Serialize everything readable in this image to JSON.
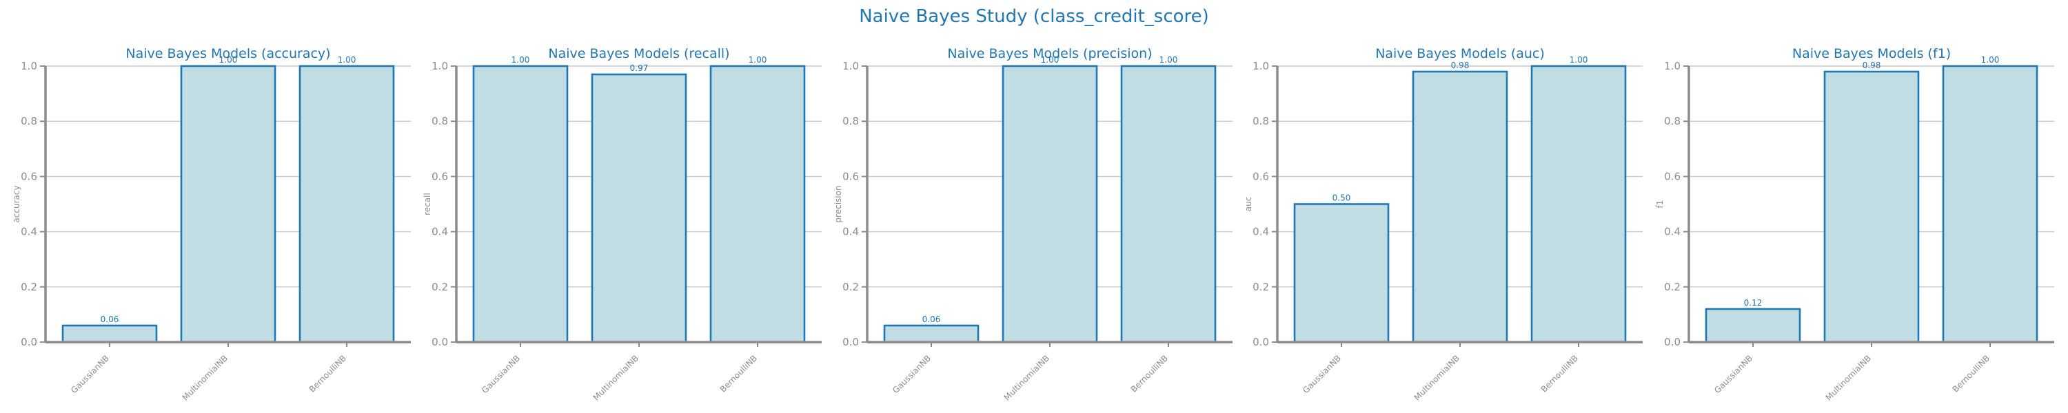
{
  "suptitle": "Naive Bayes Study (class_credit_score)",
  "colors": {
    "title": "#1f77b4",
    "bar_fill": "#bfdde2",
    "bar_edge": "#1f77b4",
    "axis": "#8c8c8c",
    "grid": "#c8c8c8"
  },
  "chart_data": [
    {
      "type": "bar",
      "title": "Naive Bayes Models (accuracy)",
      "xlabel": "",
      "ylabel": "accuracy",
      "categories": [
        "GaussianNB",
        "MultinomialNB",
        "BernoulliNB"
      ],
      "values": [
        0.06,
        1.0,
        1.0
      ],
      "value_labels": [
        "0.06",
        "1.00",
        "1.00"
      ],
      "ylim": [
        0,
        1.0
      ],
      "yticks": [
        "0.0",
        "0.2",
        "0.4",
        "0.6",
        "0.8",
        "1.0"
      ],
      "grid": true
    },
    {
      "type": "bar",
      "title": "Naive Bayes Models (recall)",
      "xlabel": "",
      "ylabel": "recall",
      "categories": [
        "GaussianNB",
        "MultinomialNB",
        "BernoulliNB"
      ],
      "values": [
        1.0,
        0.97,
        1.0
      ],
      "value_labels": [
        "1.00",
        "0.97",
        "1.00"
      ],
      "ylim": [
        0,
        1.0
      ],
      "yticks": [
        "0.0",
        "0.2",
        "0.4",
        "0.6",
        "0.8",
        "1.0"
      ],
      "grid": true
    },
    {
      "type": "bar",
      "title": "Naive Bayes Models (precision)",
      "xlabel": "",
      "ylabel": "precision",
      "categories": [
        "GaussianNB",
        "MultinomialNB",
        "BernoulliNB"
      ],
      "values": [
        0.06,
        1.0,
        1.0
      ],
      "value_labels": [
        "0.06",
        "1.00",
        "1.00"
      ],
      "ylim": [
        0,
        1.0
      ],
      "yticks": [
        "0.0",
        "0.2",
        "0.4",
        "0.6",
        "0.8",
        "1.0"
      ],
      "grid": true
    },
    {
      "type": "bar",
      "title": "Naive Bayes Models (auc)",
      "xlabel": "",
      "ylabel": "auc",
      "categories": [
        "GaussianNB",
        "MultinomialNB",
        "BernoulliNB"
      ],
      "values": [
        0.5,
        0.98,
        1.0
      ],
      "value_labels": [
        "0.50",
        "0.98",
        "1.00"
      ],
      "ylim": [
        0,
        1.0
      ],
      "yticks": [
        "0.0",
        "0.2",
        "0.4",
        "0.6",
        "0.8",
        "1.0"
      ],
      "grid": true
    },
    {
      "type": "bar",
      "title": "Naive Bayes Models (f1)",
      "xlabel": "",
      "ylabel": "f1",
      "categories": [
        "GaussianNB",
        "MultinomialNB",
        "BernoulliNB"
      ],
      "values": [
        0.12,
        0.98,
        1.0
      ],
      "value_labels": [
        "0.12",
        "0.98",
        "1.00"
      ],
      "ylim": [
        0,
        1.0
      ],
      "yticks": [
        "0.0",
        "0.2",
        "0.4",
        "0.6",
        "0.8",
        "1.0"
      ],
      "grid": true
    }
  ]
}
